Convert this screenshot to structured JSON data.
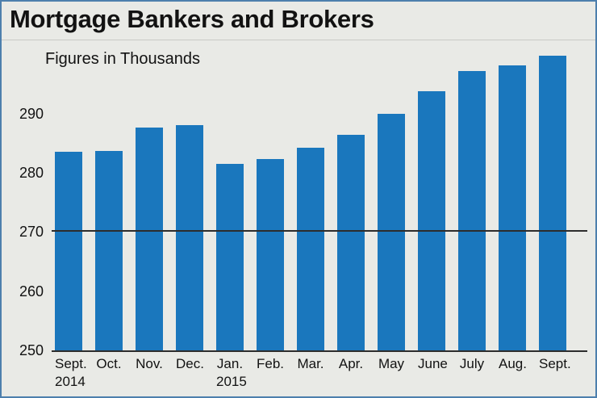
{
  "header": {
    "title": "Mortgage Bankers and Brokers",
    "subtitle": "Figures in Thousands"
  },
  "colors": {
    "bar": "#1a77bd",
    "background": "#e9eae6",
    "border": "#4d7fad",
    "axis": "#2d2d2d"
  },
  "chart_data": {
    "type": "bar",
    "title": "Mortgage Bankers and Brokers",
    "subtitle": "Figures in Thousands",
    "categories": [
      "Sept. 2014",
      "Oct.",
      "Nov.",
      "Dec.",
      "Jan. 2015",
      "Feb.",
      "Mar.",
      "Apr.",
      "May",
      "June",
      "July",
      "Aug.",
      "Sept."
    ],
    "values": [
      283.5,
      283.7,
      287.7,
      288.0,
      281.5,
      282.3,
      284.2,
      286.4,
      290.0,
      293.8,
      297.2,
      298.2,
      299.8
    ],
    "ylabel": "Figures in Thousands",
    "yticks": [
      250,
      260,
      270,
      280,
      290
    ],
    "ylim": [
      250,
      301
    ],
    "reference_line": 270,
    "grid": "reference-line-at-270-only",
    "legend": "none",
    "bar_color": "#1a77bd"
  },
  "x_axis": [
    {
      "label": "Sept.",
      "sublabel": "2014"
    },
    {
      "label": "Oct.",
      "sublabel": ""
    },
    {
      "label": "Nov.",
      "sublabel": ""
    },
    {
      "label": "Dec.",
      "sublabel": ""
    },
    {
      "label": "Jan.",
      "sublabel": "2015"
    },
    {
      "label": "Feb.",
      "sublabel": ""
    },
    {
      "label": "Mar.",
      "sublabel": ""
    },
    {
      "label": "Apr.",
      "sublabel": ""
    },
    {
      "label": "May",
      "sublabel": ""
    },
    {
      "label": "June",
      "sublabel": ""
    },
    {
      "label": "July",
      "sublabel": ""
    },
    {
      "label": "Aug.",
      "sublabel": ""
    },
    {
      "label": "Sept.",
      "sublabel": ""
    }
  ]
}
